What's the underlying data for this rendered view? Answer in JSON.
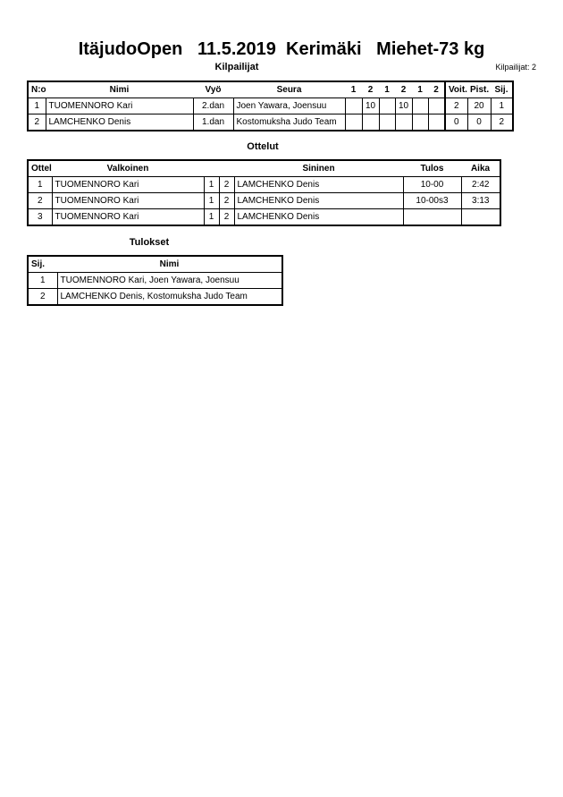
{
  "header": {
    "title": "ItäjudoOpen   11.5.2019  Kerimäki   Miehet-73 kg",
    "competitors_heading": "Kilpailijat",
    "competitors_count": "Kilpailijat: 2"
  },
  "competitors": {
    "headers": [
      "N:o",
      "Nimi",
      "Vyö",
      "Seura",
      "1",
      "2",
      "1",
      "2",
      "1",
      "2",
      "Voit.",
      "Pist.",
      "Sij."
    ],
    "rows": [
      [
        "1",
        "TUOMENNORO Kari",
        "2.dan",
        "Joen Yawara, Joensuu",
        "",
        "10",
        "",
        "10",
        "",
        "",
        "2",
        "20",
        "1"
      ],
      [
        "2",
        "LAMCHENKO Denis",
        "1.dan",
        "Kostomuksha Judo Team",
        "",
        "",
        "",
        "",
        "",
        "",
        "0",
        "0",
        "2"
      ]
    ]
  },
  "matches": {
    "heading": "Ottelut",
    "headers": [
      "Ottelu",
      "Valkoinen",
      "",
      "",
      "Sininen",
      "Tulos",
      "Aika"
    ],
    "rows": [
      [
        "1",
        "TUOMENNORO Kari",
        "1",
        "2",
        "LAMCHENKO Denis",
        "10-00",
        "2:42"
      ],
      [
        "2",
        "TUOMENNORO Kari",
        "1",
        "2",
        "LAMCHENKO Denis",
        "10-00s3",
        "3:13"
      ],
      [
        "3",
        "TUOMENNORO Kari",
        "1",
        "2",
        "LAMCHENKO Denis",
        "",
        ""
      ]
    ]
  },
  "results": {
    "heading": "Tulokset",
    "headers": [
      "Sij.",
      "Nimi"
    ],
    "rows": [
      [
        "1",
        "TUOMENNORO Kari, Joen Yawara, Joensuu"
      ],
      [
        "2",
        "LAMCHENKO Denis, Kostomuksha Judo Team"
      ]
    ]
  }
}
